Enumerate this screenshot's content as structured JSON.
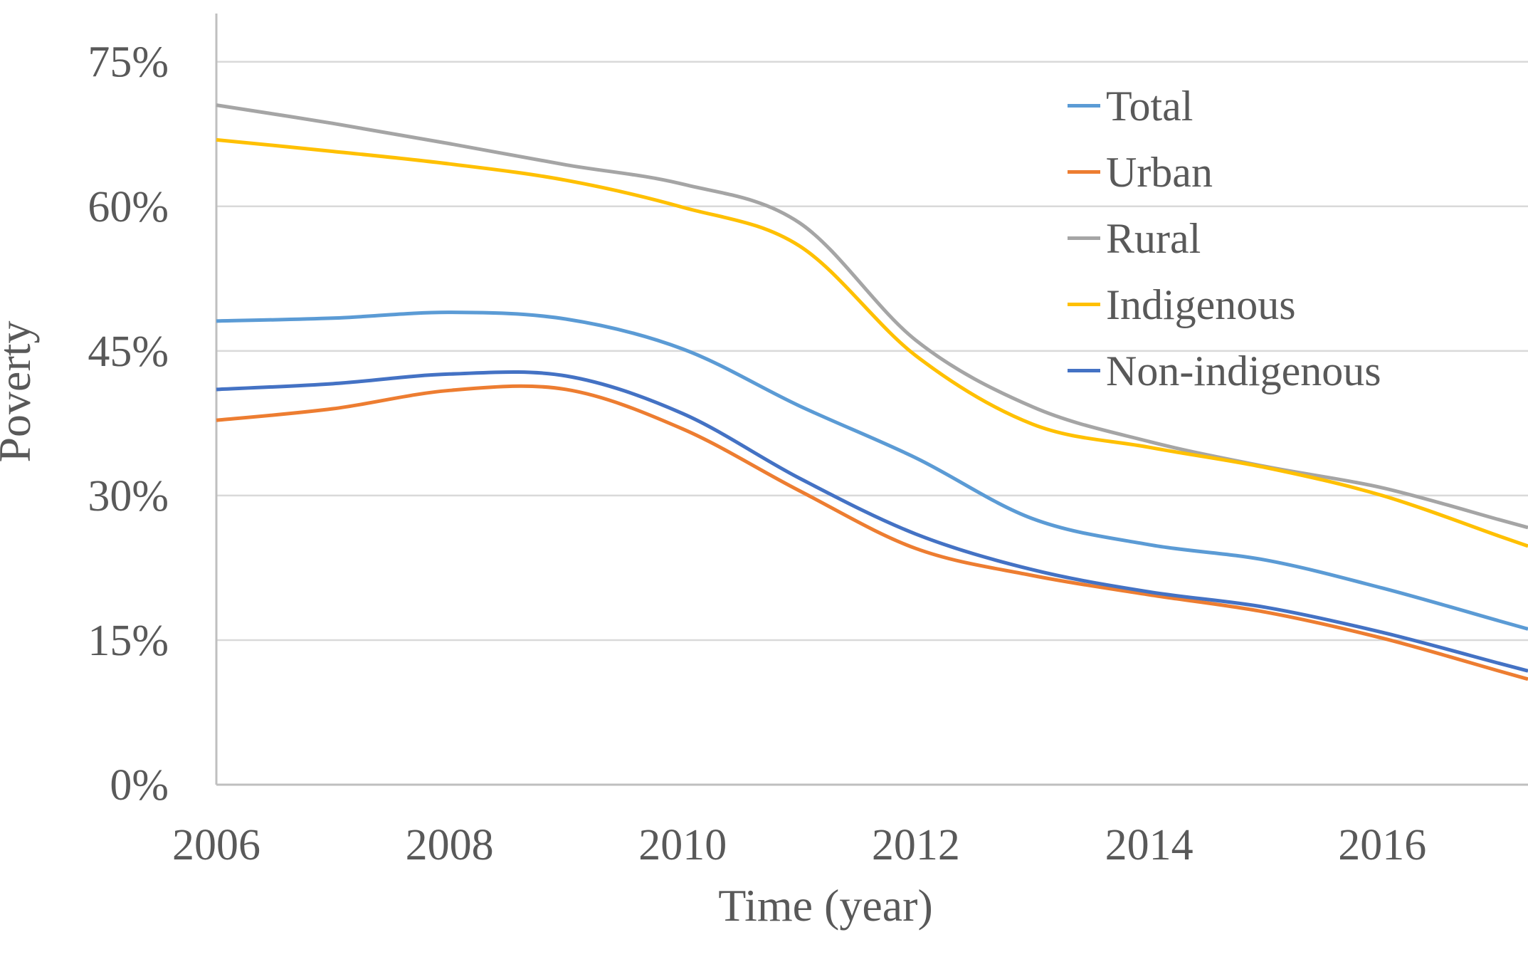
{
  "chart_data": {
    "type": "line",
    "title": "",
    "xlabel": "Time (year)",
    "ylabel": "Poverty",
    "x": [
      2006,
      2007,
      2008,
      2009,
      2010,
      2011,
      2012,
      2013,
      2014,
      2015,
      2016,
      2017
    ],
    "x_min": 2006,
    "x_max": 2017.25,
    "y_min": 0,
    "y_max": 80,
    "x_ticks": {
      "values": [
        2006,
        2008,
        2010,
        2012,
        2014,
        2016
      ],
      "labels": [
        "2006",
        "2008",
        "2010",
        "2012",
        "2014",
        "2016"
      ]
    },
    "y_ticks": {
      "values": [
        0,
        15,
        30,
        45,
        60,
        75
      ],
      "labels": [
        "0%",
        "15%",
        "30%",
        "45%",
        "60%",
        "75%"
      ]
    },
    "grid": "horizontal-only",
    "legend_position": "inside-top-right",
    "series": [
      {
        "name": "Total",
        "color": "#5B9BD5",
        "values": [
          48.1,
          48.4,
          49.0,
          48.3,
          45.2,
          39.3,
          33.9,
          27.6,
          24.9,
          23.3,
          20.4,
          17.0
        ]
      },
      {
        "name": "Urban",
        "color": "#ED7D31",
        "values": [
          37.8,
          39.0,
          40.9,
          41.0,
          36.9,
          30.5,
          24.5,
          21.7,
          19.7,
          17.9,
          15.2,
          11.8
        ]
      },
      {
        "name": "Rural",
        "color": "#A5A5A5",
        "values": [
          70.5,
          68.6,
          66.5,
          64.3,
          62.3,
          58.3,
          46.1,
          39.2,
          35.6,
          33.0,
          30.8,
          27.5
        ]
      },
      {
        "name": "Indigenous",
        "color": "#FFC000",
        "values": [
          66.9,
          65.7,
          64.4,
          62.7,
          59.9,
          55.9,
          44.5,
          37.4,
          35.0,
          32.9,
          30.0,
          25.8
        ]
      },
      {
        "name": "Non-indigenous",
        "color": "#4472C4",
        "values": [
          41.0,
          41.6,
          42.6,
          42.4,
          38.5,
          31.8,
          26.0,
          22.3,
          20.0,
          18.4,
          15.8,
          12.6
        ]
      }
    ],
    "colors": {
      "text": "#595959",
      "gridline": "#D9D9D9",
      "axis_line": "#BFBFBF",
      "background": "#FFFFFF"
    }
  }
}
